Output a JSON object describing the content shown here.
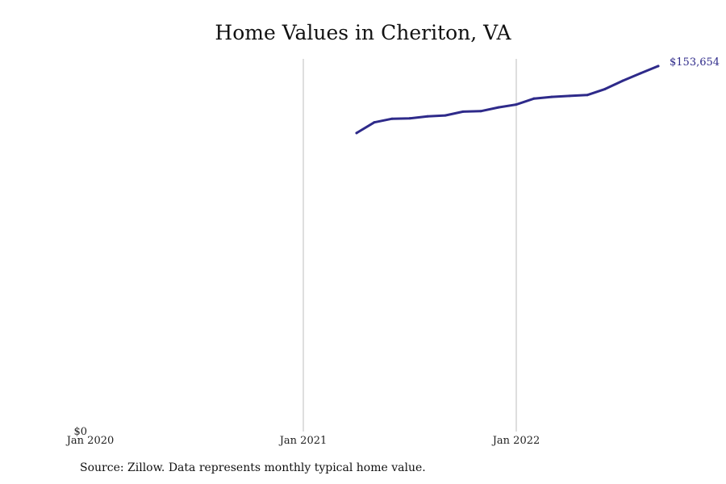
{
  "chart_data": {
    "type": "line",
    "title": "Home Values in Cheriton, VA",
    "xlabel": "",
    "ylabel": "",
    "x_ticks": [
      {
        "label": "Jan 2020",
        "x": "2020-01"
      },
      {
        "label": "Jan 2021",
        "x": "2021-01"
      },
      {
        "label": "Jan 2022",
        "x": "2022-01"
      }
    ],
    "y_ticks": [
      {
        "label": "$0",
        "y": 0
      }
    ],
    "xlim": [
      "2020-01",
      "2022-10"
    ],
    "ylim": [
      0,
      156000
    ],
    "grid": "vertical at year ticks",
    "series": [
      {
        "name": "",
        "color": "#2e2a8a",
        "points": [
          {
            "x": "2021-04",
            "y": 125500
          },
          {
            "x": "2021-05",
            "y": 130000
          },
          {
            "x": "2021-06",
            "y": 131500
          },
          {
            "x": "2021-07",
            "y": 131700
          },
          {
            "x": "2021-08",
            "y": 132500
          },
          {
            "x": "2021-09",
            "y": 132900
          },
          {
            "x": "2021-10",
            "y": 134500
          },
          {
            "x": "2021-11",
            "y": 134700
          },
          {
            "x": "2021-12",
            "y": 136300
          },
          {
            "x": "2022-01",
            "y": 137500
          },
          {
            "x": "2022-02",
            "y": 140000
          },
          {
            "x": "2022-03",
            "y": 140700
          },
          {
            "x": "2022-04",
            "y": 141100
          },
          {
            "x": "2022-05",
            "y": 141500
          },
          {
            "x": "2022-06",
            "y": 144000
          },
          {
            "x": "2022-07",
            "y": 147500
          },
          {
            "x": "2022-08",
            "y": 150600
          },
          {
            "x": "2022-09",
            "y": 153654
          }
        ],
        "end_label": "$153,654"
      }
    ]
  },
  "source_note": "Source: Zillow. Data represents monthly typical home value."
}
